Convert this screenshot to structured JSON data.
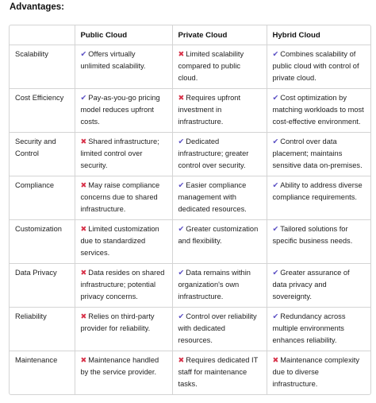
{
  "heading": "Advantages:",
  "columns": [
    "",
    "Public Cloud",
    "Private Cloud",
    "Hybrid Cloud"
  ],
  "icons": {
    "check": "✔",
    "cross": "✖",
    "check_color": "#5b4fc4",
    "cross_color": "#d8334a"
  },
  "rows": [
    {
      "aspect": "Scalability",
      "cells": [
        {
          "mark": "check",
          "text": "Offers virtually unlimited scalability."
        },
        {
          "mark": "cross",
          "text": "Limited scalability compared to public cloud."
        },
        {
          "mark": "check",
          "text": "Combines scalability of public cloud with control of private cloud."
        }
      ]
    },
    {
      "aspect": "Cost Efficiency",
      "cells": [
        {
          "mark": "check",
          "text": "Pay-as-you-go pricing model reduces upfront costs."
        },
        {
          "mark": "cross",
          "text": "Requires upfront investment in infrastructure."
        },
        {
          "mark": "check",
          "text": "Cost optimization by matching workloads to most cost-effective environment."
        }
      ]
    },
    {
      "aspect": "Security and Control",
      "cells": [
        {
          "mark": "cross",
          "text": "Shared infrastructure; limited control over security."
        },
        {
          "mark": "check",
          "text": "Dedicated infrastructure; greater control over security."
        },
        {
          "mark": "check",
          "text": "Control over data placement; maintains sensitive data on-premises."
        }
      ]
    },
    {
      "aspect": "Compliance",
      "cells": [
        {
          "mark": "cross",
          "text": "May raise compliance concerns due to shared infrastructure."
        },
        {
          "mark": "check",
          "text": "Easier compliance management with dedicated resources."
        },
        {
          "mark": "check",
          "text": "Ability to address diverse compliance requirements."
        }
      ]
    },
    {
      "aspect": "Customization",
      "cells": [
        {
          "mark": "cross",
          "text": "Limited customization due to standardized services."
        },
        {
          "mark": "check",
          "text": "Greater customization and flexibility."
        },
        {
          "mark": "check",
          "text": "Tailored solutions for specific business needs."
        }
      ]
    },
    {
      "aspect": "Data Privacy",
      "cells": [
        {
          "mark": "cross",
          "text": "Data resides on shared infrastructure; potential privacy concerns."
        },
        {
          "mark": "check",
          "text": "Data remains within organization's own infrastructure."
        },
        {
          "mark": "check",
          "text": "Greater assurance of data privacy and sovereignty."
        }
      ]
    },
    {
      "aspect": "Reliability",
      "cells": [
        {
          "mark": "cross",
          "text": "Relies on third-party provider for reliability."
        },
        {
          "mark": "check",
          "text": "Control over reliability with dedicated resources."
        },
        {
          "mark": "check",
          "text": "Redundancy across multiple environments enhances reliability."
        }
      ]
    },
    {
      "aspect": "Maintenance",
      "cells": [
        {
          "mark": "cross",
          "text": "Maintenance handled by the service provider."
        },
        {
          "mark": "cross",
          "text": "Requires dedicated IT staff for maintenance tasks."
        },
        {
          "mark": "cross",
          "text": "Maintenance complexity due to diverse infrastructure."
        }
      ]
    }
  ]
}
